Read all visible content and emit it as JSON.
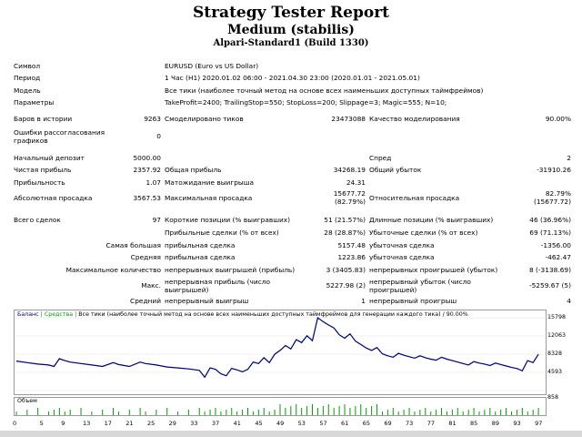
{
  "report": {
    "title": "Strategy Tester Report",
    "subtitle": "Medium (stabilis)",
    "server": "Alpari-Standard1 (Build 1330)"
  },
  "settings": [
    {
      "label": "Символ",
      "value": "EURUSD (Euro vs US Dollar)"
    },
    {
      "label": "Период",
      "value": "1 Час (H1) 2020.01.02 06:00 - 2021.04.30 23:00 (2020.01.01 - 2021.05.01)"
    },
    {
      "label": "Модель",
      "value": "Все тики (наиболее точный метод на основе всех наименьших доступных таймфреймов)"
    },
    {
      "label": "Параметры",
      "value": "TakeProfit=2400; TrailingStop=550; StopLoss=200; Slippage=3; Magic=555; N=10;"
    }
  ],
  "stats": {
    "bars_label": "Баров в истории",
    "bars_value": "9263",
    "ticks_label": "Смоделировано тиков",
    "ticks_value": "23473088",
    "quality_label": "Качество моделирования",
    "quality_value": "90.00%",
    "errors_label": "Ошибки рассогласования графиков",
    "errors_value": "0",
    "deposit_label": "Начальный депозит",
    "deposit_value": "5000.00",
    "spread_label": "Спред",
    "spread_value": "2",
    "net_label": "Чистая прибыль",
    "net_value": "2357.92",
    "gross_profit_label": "Общая прибыль",
    "gross_profit_value": "34268.19",
    "gross_loss_label": "Общий убыток",
    "gross_loss_value": "-31910.26",
    "pf_label": "Прибыльность",
    "pf_value": "1.07",
    "expect_label": "Матожидание выигрыша",
    "expect_value": "24.31",
    "abs_dd_label": "Абсолютная просадка",
    "abs_dd_value": "3567.53",
    "max_dd_label": "Максимальная просадка",
    "max_dd_value": "15677.72",
    "max_dd_pct": "(82.79%)",
    "rel_dd_label": "Относительная просадка",
    "rel_dd_value": "82.79%",
    "rel_dd_money": "(15677.72)",
    "trades_label": "Всего сделок",
    "trades_value": "97",
    "short_label": "Короткие позиции (% выигравших)",
    "short_value": "51 (21.57%)",
    "long_label": "Длинные позиции (% выигравших)",
    "long_value": "46 (36.96%)",
    "win_label": "Прибыльные сделки (% от всех)",
    "win_value": "28 (28.87%)",
    "loss_label": "Убыточные сделки (% от всех)",
    "loss_value": "69 (71.13%)",
    "largest_label": "Самая большая",
    "largest_profit_label": "прибыльная сделка",
    "largest_profit_value": "5157.48",
    "largest_loss_label": "убыточная сделка",
    "largest_loss_value": "-1356.00",
    "average_label": "Средняя",
    "average_profit_label": "прибыльная сделка",
    "average_profit_value": "1223.86",
    "average_loss_label": "убыточная сделка",
    "average_loss_value": "-462.47",
    "maxcount_label": "Максимальное количество",
    "maxcount_win_label": "непрерывных выигрышей (прибыль)",
    "maxcount_win_value": "3 (3405.83)",
    "maxcount_loss_label": "непрерывных проигрышей (убыток)",
    "maxcount_loss_value": "8 (-3138.69)",
    "max_label": "Макс.",
    "max_win_label": "непрерывная прибыль (число выигрышей)",
    "max_win_value": "5227.98 (2)",
    "max_loss_label": "непрерывный убыток (число проигрышей)",
    "max_loss_value": "-5259.67 (5)",
    "avg_label": "Средний",
    "avg_win_label": "непрерывный выигрыш",
    "avg_win_value": "1",
    "avg_loss_label": "непрерывный проигрыш",
    "avg_loss_value": "4"
  },
  "chart_data": {
    "type": "line",
    "legend": {
      "balance": "Баланс",
      "equity": "Средства",
      "model": "Все тики (наиболее точный метод на основе всех наименьших доступных таймфреймов для генерации каждого тика)",
      "quality": "90.00%"
    },
    "volume_label": "Объем",
    "y_ticks": [
      "15798",
      "12063",
      "8328",
      "4593",
      "858"
    ],
    "ylim": [
      858,
      15798
    ],
    "x_ticks": [
      "0",
      "5",
      "9",
      "13",
      "17",
      "21",
      "25",
      "29",
      "33",
      "37",
      "41",
      "45",
      "49",
      "53",
      "57",
      "61",
      "65",
      "69",
      "73",
      "77",
      "81",
      "85",
      "89",
      "93",
      "97"
    ],
    "xlim": [
      0,
      98
    ],
    "colors": {
      "balance": "#00008b",
      "equity": "#00a000"
    },
    "balance": [
      [
        0,
        6900
      ],
      [
        2,
        6600
      ],
      [
        4,
        6300
      ],
      [
        6,
        6100
      ],
      [
        7,
        5800
      ],
      [
        8,
        7400
      ],
      [
        9,
        7000
      ],
      [
        10,
        6700
      ],
      [
        12,
        6400
      ],
      [
        14,
        6100
      ],
      [
        16,
        5800
      ],
      [
        18,
        6600
      ],
      [
        19,
        6200
      ],
      [
        21,
        5800
      ],
      [
        23,
        6700
      ],
      [
        24,
        6400
      ],
      [
        26,
        6100
      ],
      [
        28,
        5700
      ],
      [
        30,
        5500
      ],
      [
        32,
        5300
      ],
      [
        34,
        5000
      ],
      [
        35,
        3600
      ],
      [
        36,
        5500
      ],
      [
        37,
        5200
      ],
      [
        38,
        4300
      ],
      [
        39,
        3900
      ],
      [
        40,
        5400
      ],
      [
        41,
        5100
      ],
      [
        42,
        4700
      ],
      [
        43,
        5200
      ],
      [
        44,
        6700
      ],
      [
        45,
        6400
      ],
      [
        46,
        7600
      ],
      [
        47,
        6600
      ],
      [
        48,
        8300
      ],
      [
        49,
        9100
      ],
      [
        50,
        10100
      ],
      [
        51,
        9400
      ],
      [
        52,
        11300
      ],
      [
        53,
        10700
      ],
      [
        54,
        12100
      ],
      [
        55,
        11100
      ],
      [
        56,
        15800
      ],
      [
        57,
        15000
      ],
      [
        58,
        14300
      ],
      [
        59,
        13700
      ],
      [
        60,
        12300
      ],
      [
        61,
        11600
      ],
      [
        62,
        12500
      ],
      [
        63,
        11000
      ],
      [
        64,
        10300
      ],
      [
        65,
        9600
      ],
      [
        66,
        9100
      ],
      [
        67,
        9700
      ],
      [
        68,
        8400
      ],
      [
        69,
        8000
      ],
      [
        70,
        7700
      ],
      [
        71,
        8500
      ],
      [
        72,
        8100
      ],
      [
        73,
        7800
      ],
      [
        74,
        7500
      ],
      [
        75,
        8000
      ],
      [
        76,
        7600
      ],
      [
        77,
        7300
      ],
      [
        78,
        7100
      ],
      [
        79,
        7700
      ],
      [
        80,
        7300
      ],
      [
        81,
        7000
      ],
      [
        82,
        6700
      ],
      [
        83,
        6400
      ],
      [
        84,
        6100
      ],
      [
        85,
        6800
      ],
      [
        86,
        6500
      ],
      [
        87,
        6300
      ],
      [
        88,
        6000
      ],
      [
        89,
        6500
      ],
      [
        90,
        6200
      ],
      [
        91,
        5900
      ],
      [
        92,
        5600
      ],
      [
        93,
        5400
      ],
      [
        94,
        4900
      ],
      [
        95,
        7000
      ],
      [
        96,
        6600
      ],
      [
        97,
        8300
      ]
    ]
  },
  "status_bar": ""
}
